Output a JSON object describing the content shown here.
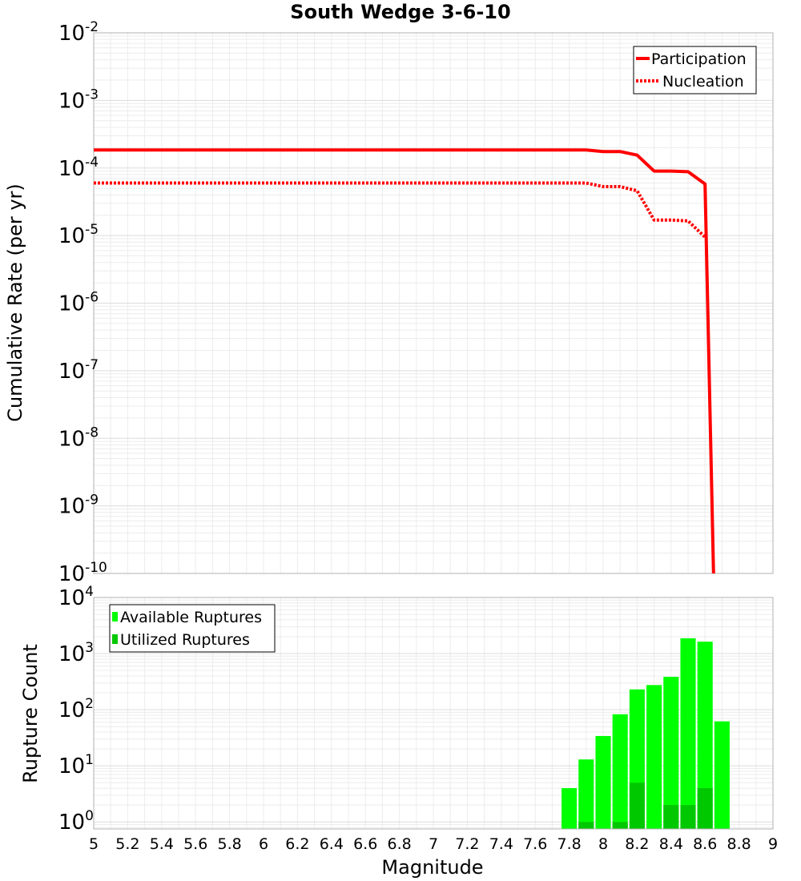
{
  "chart_data": {
    "title": "South Wedge 3-6-10",
    "xlabel": "Magnitude",
    "x_ticks": [
      "5",
      "5.2",
      "5.4",
      "5.6",
      "5.8",
      "6",
      "6.2",
      "6.4",
      "6.6",
      "6.8",
      "7",
      "7.2",
      "7.4",
      "7.6",
      "7.8",
      "8",
      "8.2",
      "8.4",
      "8.6",
      "8.8",
      "9"
    ],
    "xlim": [
      5,
      9
    ],
    "panels": [
      {
        "type": "line",
        "ylabel": "Cumulative Rate (per yr)",
        "yscale": "log",
        "ylim": [
          1e-10,
          0.01
        ],
        "y_ticks": [
          {
            "base": "10",
            "exp": "-2"
          },
          {
            "base": "10",
            "exp": "-3"
          },
          {
            "base": "10",
            "exp": "-4"
          },
          {
            "base": "10",
            "exp": "-5"
          },
          {
            "base": "10",
            "exp": "-6"
          },
          {
            "base": "10",
            "exp": "-7"
          },
          {
            "base": "10",
            "exp": "-8"
          },
          {
            "base": "10",
            "exp": "-9"
          },
          {
            "base": "10",
            "exp": "-10"
          }
        ],
        "legend": [
          "Participation",
          "Nucleation"
        ],
        "series": [
          {
            "name": "Participation",
            "color": "#ff0000",
            "style": "solid",
            "x": [
              5.0,
              7.9,
              8.0,
              8.1,
              8.2,
              8.3,
              8.4,
              8.5,
              8.6,
              8.65
            ],
            "y": [
              0.000185,
              0.000185,
              0.000175,
              0.000175,
              0.000155,
              9e-05,
              9e-05,
              8.8e-05,
              5.8e-05,
              1e-10
            ]
          },
          {
            "name": "Nucleation",
            "color": "#ff0000",
            "style": "dotted",
            "x": [
              5.0,
              7.9,
              8.0,
              8.1,
              8.2,
              8.3,
              8.4,
              8.5,
              8.6
            ],
            "y": [
              6e-05,
              6e-05,
              5.3e-05,
              5.3e-05,
              4.6e-05,
              1.7e-05,
              1.7e-05,
              1.65e-05,
              9.5e-06
            ]
          }
        ]
      },
      {
        "type": "bar",
        "ylabel": "Rupture Count",
        "yscale": "log",
        "ylim": [
          0.75,
          10000
        ],
        "y_ticks": [
          {
            "base": "10",
            "exp": "4"
          },
          {
            "base": "10",
            "exp": "3"
          },
          {
            "base": "10",
            "exp": "2"
          },
          {
            "base": "10",
            "exp": "1"
          },
          {
            "base": "10",
            "exp": "0"
          }
        ],
        "legend": [
          "Available Ruptures",
          "Utilized Ruptures"
        ],
        "bar_width": 0.09,
        "categories": [
          7.8,
          7.9,
          8.0,
          8.1,
          8.2,
          8.3,
          8.4,
          8.5,
          8.6,
          8.7
        ],
        "series": [
          {
            "name": "Available Ruptures",
            "color": "#00ff00",
            "values": [
              4,
              13,
              34,
              83,
              230,
              275,
              385,
              1875,
              1630,
              62
            ]
          },
          {
            "name": "Utilized Ruptures",
            "color": "#00c800",
            "values": [
              0,
              1,
              0,
              1,
              5,
              0,
              2,
              2,
              4,
              0
            ]
          }
        ]
      }
    ]
  }
}
